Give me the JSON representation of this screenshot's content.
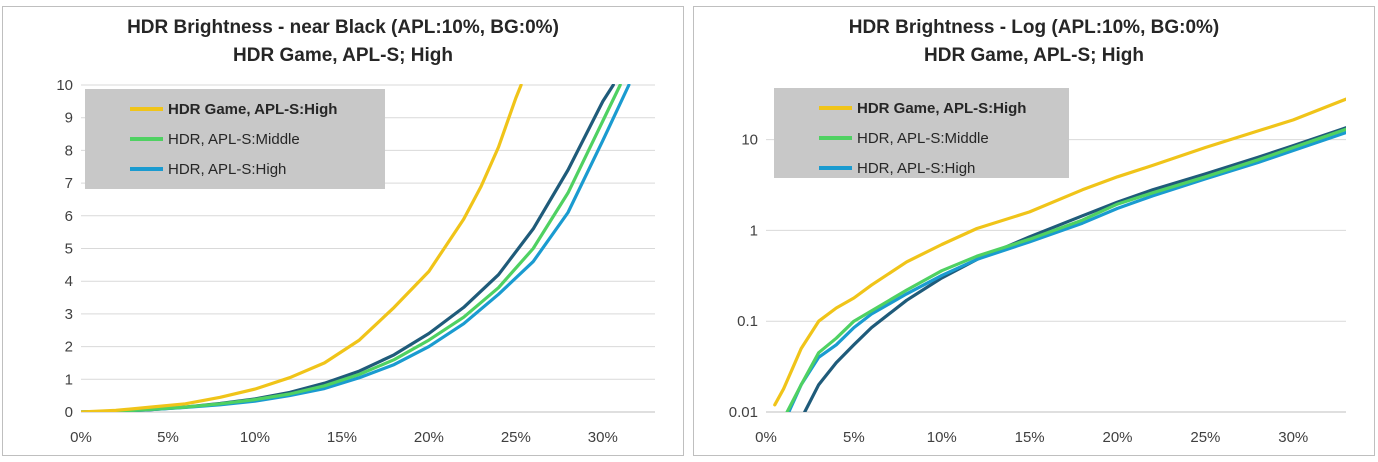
{
  "colors": {
    "yellow": "#f0c419",
    "green": "#4fd162",
    "blue": "#1a9bd0",
    "navy": "#1f5b7a",
    "legend_bg": "#c8c8c8",
    "grid": "#d9d9d9"
  },
  "chart_data": [
    {
      "type": "line",
      "title": "HDR Brightness - near Black (APL:10%, BG:0%)",
      "subtitle": "HDR Game, APL-S; High",
      "xlabel": "",
      "ylabel": "",
      "x_ticks": [
        "0%",
        "5%",
        "10%",
        "15%",
        "20%",
        "25%",
        "30%"
      ],
      "y_ticks": [
        "0",
        "1",
        "2",
        "3",
        "4",
        "5",
        "6",
        "7",
        "8",
        "9",
        "10"
      ],
      "xlim": [
        0,
        33
      ],
      "ylim": [
        0,
        10
      ],
      "yscale": "linear",
      "grid": "horizontal",
      "legend_position": "top-left",
      "series": [
        {
          "name": "HDR Game, APL-S:High",
          "color": "#f0c419",
          "bold": true,
          "x": [
            0,
            2,
            4,
            6,
            8,
            10,
            12,
            14,
            16,
            18,
            20,
            21,
            22,
            23,
            24,
            25,
            25.3
          ],
          "y": [
            0,
            0.05,
            0.15,
            0.25,
            0.45,
            0.7,
            1.05,
            1.5,
            2.2,
            3.2,
            4.3,
            5.1,
            5.9,
            6.9,
            8.1,
            9.6,
            10
          ]
        },
        {
          "name": "HDR, APL-S:Middle",
          "color": "#4fd162",
          "bold": false,
          "x": [
            0,
            2,
            4,
            6,
            8,
            10,
            12,
            14,
            16,
            18,
            20,
            22,
            24,
            26,
            28,
            30,
            31
          ],
          "y": [
            0,
            0.02,
            0.08,
            0.15,
            0.25,
            0.38,
            0.55,
            0.8,
            1.15,
            1.6,
            2.2,
            2.9,
            3.8,
            5.0,
            6.7,
            8.9,
            10
          ]
        },
        {
          "name": "HDR, APL-S:High",
          "color": "#1a9bd0",
          "bold": false,
          "x": [
            0,
            2,
            4,
            6,
            8,
            10,
            12,
            14,
            16,
            18,
            20,
            22,
            24,
            26,
            28,
            30,
            31.5
          ],
          "y": [
            0,
            0.02,
            0.07,
            0.14,
            0.22,
            0.33,
            0.5,
            0.72,
            1.05,
            1.45,
            2.0,
            2.7,
            3.6,
            4.6,
            6.1,
            8.3,
            10
          ]
        },
        {
          "name": "",
          "color": "#1f5b7a",
          "bold": false,
          "x": [
            0,
            2,
            4,
            6,
            8,
            10,
            12,
            14,
            16,
            18,
            20,
            22,
            24,
            26,
            28,
            30,
            30.6
          ],
          "y": [
            0,
            0.02,
            0.07,
            0.15,
            0.26,
            0.4,
            0.6,
            0.88,
            1.25,
            1.75,
            2.4,
            3.2,
            4.2,
            5.6,
            7.4,
            9.5,
            10
          ]
        }
      ]
    },
    {
      "type": "line",
      "title": "HDR Brightness - Log (APL:10%, BG:0%)",
      "subtitle": "HDR Game, APL-S; High",
      "xlabel": "",
      "ylabel": "",
      "x_ticks": [
        "0%",
        "5%",
        "10%",
        "15%",
        "20%",
        "25%",
        "30%"
      ],
      "y_ticks": [
        "0.01",
        "0.1",
        "1",
        "10"
      ],
      "xlim": [
        0,
        33
      ],
      "ylim": [
        0.01,
        40
      ],
      "yscale": "log",
      "grid": "horizontal",
      "legend_position": "top-left",
      "series": [
        {
          "name": "HDR Game, APL-S:High",
          "color": "#f0c419",
          "bold": true,
          "x": [
            0.5,
            1,
            1.5,
            2,
            3,
            4,
            5,
            6,
            8,
            10,
            12,
            15,
            18,
            20,
            22,
            25,
            28,
            30,
            33
          ],
          "y": [
            0.012,
            0.018,
            0.03,
            0.05,
            0.1,
            0.14,
            0.18,
            0.25,
            0.45,
            0.7,
            1.05,
            1.6,
            2.8,
            3.9,
            5.2,
            8.2,
            12.5,
            16.5,
            28
          ]
        },
        {
          "name": "HDR, APL-S:Middle",
          "color": "#4fd162",
          "bold": false,
          "x": [
            1.2,
            2,
            3,
            4,
            5,
            6,
            8,
            10,
            12,
            15,
            18,
            20,
            22,
            25,
            28,
            30,
            33
          ],
          "y": [
            0.01,
            0.02,
            0.045,
            0.065,
            0.1,
            0.13,
            0.22,
            0.36,
            0.52,
            0.8,
            1.3,
            1.95,
            2.6,
            3.9,
            6.0,
            8.2,
            13
          ]
        },
        {
          "name": "HDR, APL-S:High",
          "color": "#1a9bd0",
          "bold": false,
          "x": [
            1.3,
            2,
            3,
            4,
            5,
            6,
            8,
            10,
            12,
            15,
            18,
            20,
            22,
            25,
            28,
            30,
            33
          ],
          "y": [
            0.01,
            0.02,
            0.04,
            0.055,
            0.085,
            0.12,
            0.2,
            0.32,
            0.48,
            0.75,
            1.2,
            1.75,
            2.4,
            3.7,
            5.6,
            7.6,
            12
          ]
        },
        {
          "name": "",
          "color": "#1f5b7a",
          "bold": false,
          "x": [
            2.2,
            3,
            4,
            5,
            6,
            8,
            10,
            12,
            15,
            18,
            20,
            22,
            25,
            28,
            30,
            33
          ],
          "y": [
            0.01,
            0.02,
            0.035,
            0.055,
            0.085,
            0.17,
            0.3,
            0.48,
            0.85,
            1.45,
            2.05,
            2.8,
            4.2,
            6.4,
            8.6,
            13.5
          ]
        }
      ]
    }
  ]
}
